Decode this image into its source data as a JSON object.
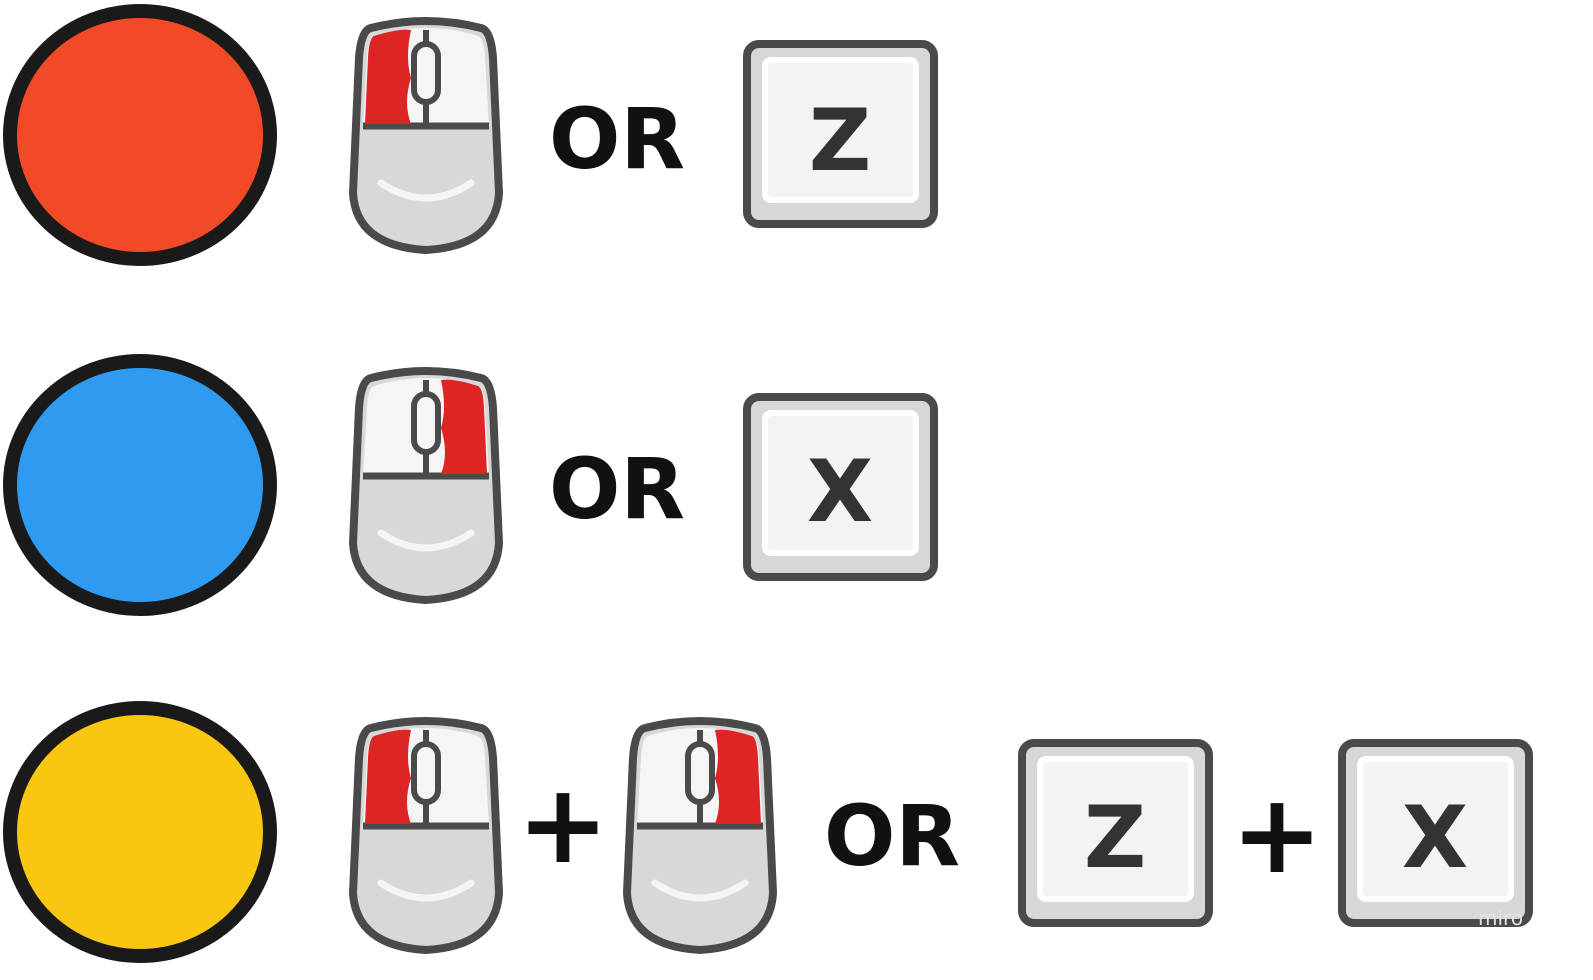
{
  "rows": [
    {
      "circle_color": "#F24A26",
      "mouse_buttons": [
        "left"
      ],
      "or_label": "OR",
      "keys": [
        "Z"
      ]
    },
    {
      "circle_color": "#2E9BF0",
      "mouse_buttons": [
        "right"
      ],
      "or_label": "OR",
      "keys": [
        "X"
      ]
    },
    {
      "circle_color": "#F9C612",
      "mouse_buttons": [
        "left",
        "right"
      ],
      "plus_label": "+",
      "or_label": "OR",
      "keys": [
        "Z",
        "X"
      ]
    }
  ],
  "colors": {
    "outline": "#1a1a1a",
    "mouse_outline": "#4a4a4a",
    "mouse_body": "#d8d8d8",
    "mouse_button": "#f5f5f5",
    "mouse_active": "#dd2525",
    "key_face": "#f3f3f3",
    "key_base": "#d7d7d7"
  },
  "watermark": "miro"
}
